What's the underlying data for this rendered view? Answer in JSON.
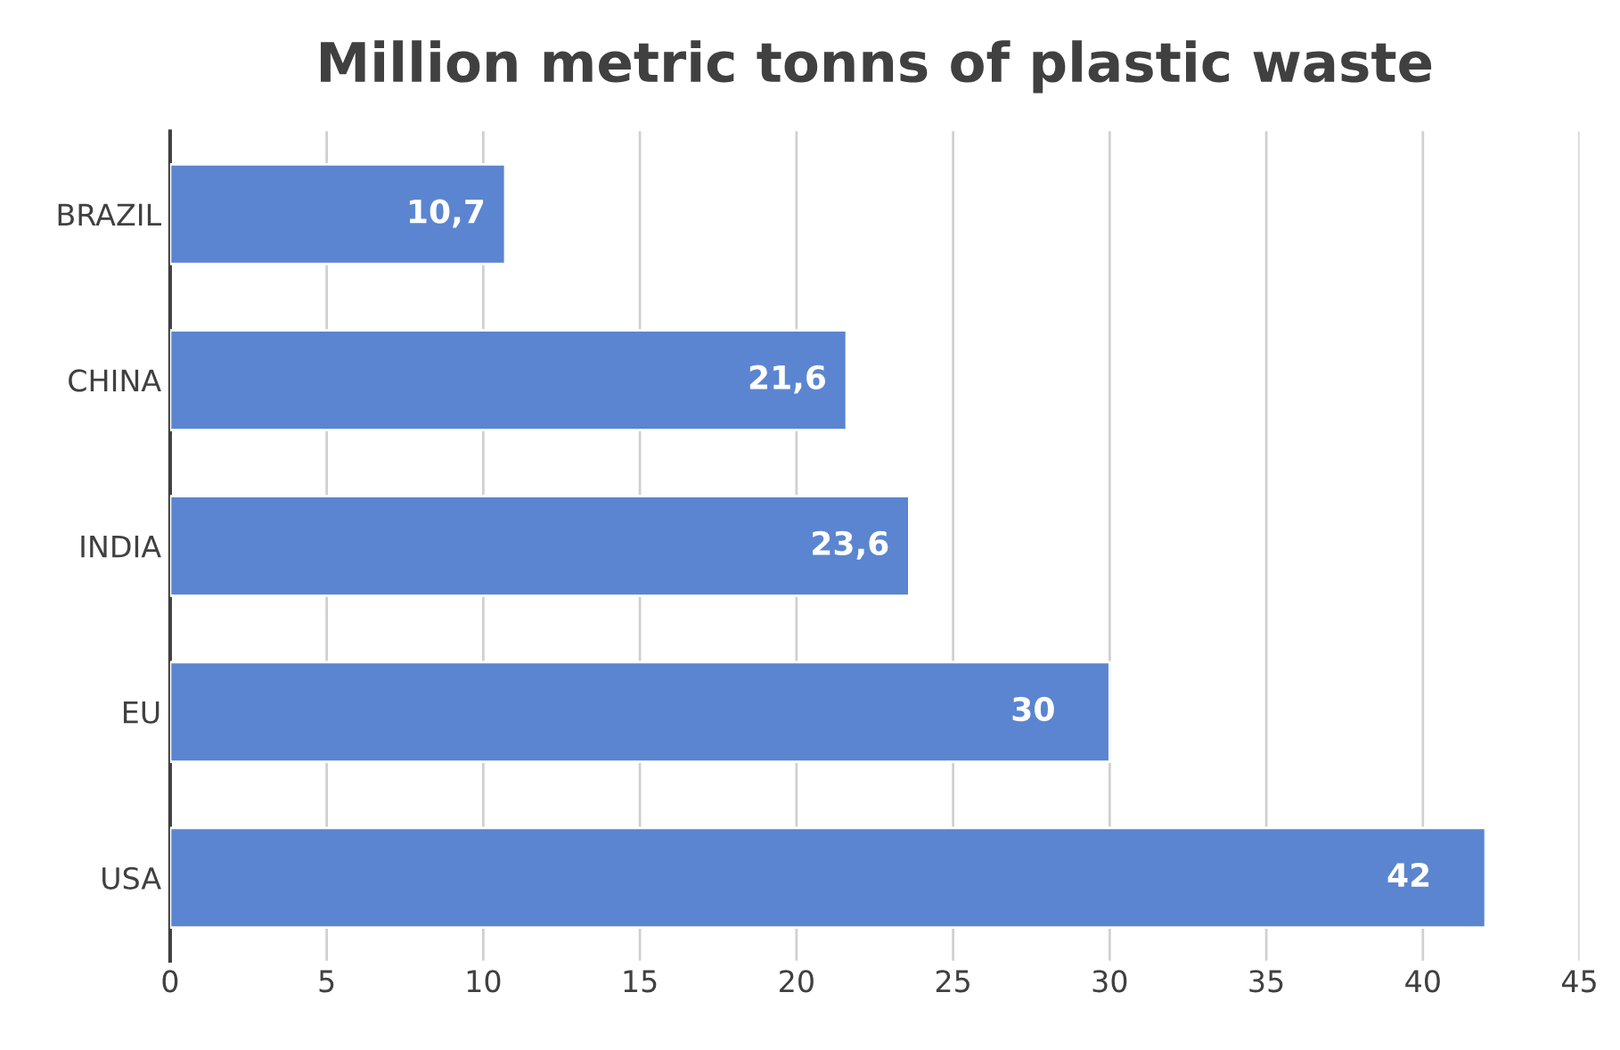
{
  "chart_data": {
    "type": "bar",
    "orientation": "horizontal",
    "title": "Million metric tonns of plastic waste",
    "categories": [
      "BRAZIL",
      "CHINA",
      "INDIA",
      "EU",
      "USA"
    ],
    "values": [
      10.7,
      21.6,
      23.6,
      30,
      42
    ],
    "value_labels": [
      "10,7",
      "21,6",
      "23,6",
      "30",
      "42"
    ],
    "color": "#5b85d0",
    "xlim": [
      0,
      45
    ],
    "xticks": [
      0,
      5,
      10,
      15,
      20,
      25,
      30,
      35,
      40,
      45
    ],
    "grid": "x"
  }
}
